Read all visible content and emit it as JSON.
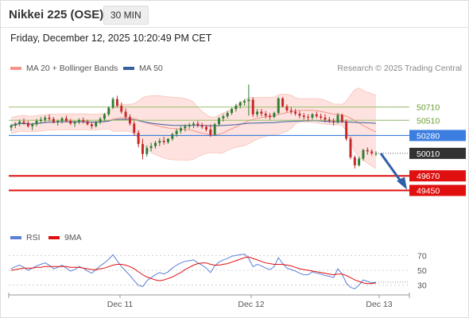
{
  "header": {
    "title": "Nikkei 225 (OSE)",
    "timeframe": "30 MIN",
    "datetime": "Friday, December 12, 2025 10:20:49 PM CET",
    "credit": "Research © 2025 Trading Central"
  },
  "legend": {
    "items": [
      {
        "label": "MA 20 + Bollinger Bands",
        "color": "#f4958a"
      },
      {
        "label": "MA 50",
        "color": "#3a5f9e"
      }
    ]
  },
  "rsi_legend": {
    "items": [
      {
        "label": "RSI",
        "color": "#5b7fd6"
      },
      {
        "label": "9MA",
        "color": "#e01010"
      }
    ]
  },
  "colors": {
    "up_candle": "#2e7d32",
    "down_candle": "#c62828",
    "bollinger_fill": "#fde2df",
    "ma20": "#f4958a",
    "ma50": "#3a5f9e",
    "resistance": "#9bc26b",
    "pivot": "#3b7de0",
    "support": "#e01010",
    "last_price_tag": "#333333",
    "forecast_arrow": "#2f5fa8"
  },
  "chart_data": [
    {
      "type": "candlestick",
      "panel": "price",
      "x_tick_labels": [
        "Dec 11",
        "Dec 12",
        "Dec 13"
      ],
      "ylim": [
        49300,
        51150
      ],
      "last_price": "50010",
      "levels": [
        {
          "label": "50710",
          "value": 50710,
          "kind": "resistance"
        },
        {
          "label": "50510",
          "value": 50510,
          "kind": "resistance"
        },
        {
          "label": "50280",
          "value": 50280,
          "kind": "pivot"
        },
        {
          "label": "49670",
          "value": 49670,
          "kind": "support"
        },
        {
          "label": "49450",
          "value": 49450,
          "kind": "support"
        }
      ],
      "forecast_arrow": {
        "from": 50010,
        "to": 49450,
        "direction": "down"
      },
      "candles": [
        [
          50400,
          50450,
          50350,
          50430
        ],
        [
          50430,
          50480,
          50390,
          50460
        ],
        [
          50460,
          50520,
          50420,
          50490
        ],
        [
          50490,
          50540,
          50440,
          50470
        ],
        [
          50470,
          50500,
          50400,
          50420
        ],
        [
          50420,
          50470,
          50360,
          50450
        ],
        [
          50450,
          50530,
          50420,
          50500
        ],
        [
          50500,
          50560,
          50460,
          50520
        ],
        [
          50520,
          50580,
          50480,
          50550
        ],
        [
          50550,
          50600,
          50500,
          50530
        ],
        [
          50530,
          50560,
          50460,
          50480
        ],
        [
          50480,
          50520,
          50430,
          50500
        ],
        [
          50500,
          50560,
          50460,
          50540
        ],
        [
          50540,
          50580,
          50480,
          50500
        ],
        [
          50500,
          50530,
          50440,
          50460
        ],
        [
          50460,
          50500,
          50410,
          50480
        ],
        [
          50480,
          50540,
          50450,
          50510
        ],
        [
          50510,
          50550,
          50460,
          50490
        ],
        [
          50490,
          50520,
          50430,
          50450
        ],
        [
          50450,
          50480,
          50380,
          50420
        ],
        [
          50420,
          50500,
          50400,
          50480
        ],
        [
          50480,
          50560,
          50450,
          50530
        ],
        [
          50530,
          50620,
          50500,
          50600
        ],
        [
          50600,
          50720,
          50570,
          50700
        ],
        [
          50700,
          50860,
          50680,
          50830
        ],
        [
          50830,
          50880,
          50700,
          50730
        ],
        [
          50730,
          50780,
          50610,
          50640
        ],
        [
          50640,
          50690,
          50520,
          50560
        ],
        [
          50560,
          50600,
          50430,
          50460
        ],
        [
          50460,
          50500,
          50280,
          50320
        ],
        [
          50320,
          50360,
          50100,
          50150
        ],
        [
          50150,
          50230,
          49920,
          50000
        ],
        [
          50000,
          50130,
          49960,
          50090
        ],
        [
          50090,
          50170,
          50040,
          50120
        ],
        [
          50120,
          50200,
          50080,
          50170
        ],
        [
          50170,
          50240,
          50120,
          50200
        ],
        [
          50200,
          50260,
          50140,
          50180
        ],
        [
          50180,
          50240,
          50150,
          50230
        ],
        [
          50230,
          50320,
          50200,
          50300
        ],
        [
          50300,
          50380,
          50260,
          50350
        ],
        [
          50350,
          50420,
          50310,
          50390
        ],
        [
          50390,
          50450,
          50340,
          50420
        ],
        [
          50420,
          50470,
          50380,
          50440
        ],
        [
          50440,
          50490,
          50390,
          50460
        ],
        [
          50460,
          50500,
          50400,
          50430
        ],
        [
          50430,
          50470,
          50380,
          50410
        ],
        [
          50410,
          50440,
          50340,
          50370
        ],
        [
          50370,
          50450,
          50260,
          50290
        ],
        [
          50290,
          50470,
          50280,
          50450
        ],
        [
          50450,
          50560,
          50420,
          50540
        ],
        [
          50540,
          50600,
          50490,
          50570
        ],
        [
          50570,
          50650,
          50540,
          50620
        ],
        [
          50620,
          50700,
          50590,
          50680
        ],
        [
          50680,
          50760,
          50640,
          50730
        ],
        [
          50730,
          50800,
          50690,
          50780
        ],
        [
          50780,
          50830,
          50730,
          50800
        ],
        [
          50800,
          51050,
          50580,
          50820
        ],
        [
          50820,
          50860,
          50560,
          50600
        ],
        [
          50600,
          50680,
          50560,
          50640
        ],
        [
          50640,
          50680,
          50570,
          50610
        ],
        [
          50610,
          50650,
          50540,
          50580
        ],
        [
          50580,
          50620,
          50520,
          50560
        ],
        [
          50560,
          50640,
          50540,
          50620
        ],
        [
          50620,
          50860,
          50600,
          50840
        ],
        [
          50840,
          50860,
          50700,
          50720
        ],
        [
          50720,
          50750,
          50630,
          50660
        ],
        [
          50660,
          50710,
          50600,
          50640
        ],
        [
          50640,
          50680,
          50580,
          50610
        ],
        [
          50610,
          50650,
          50540,
          50580
        ],
        [
          50580,
          50620,
          50520,
          50560
        ],
        [
          50560,
          50600,
          50500,
          50550
        ],
        [
          50550,
          50620,
          50520,
          50600
        ],
        [
          50600,
          50640,
          50540,
          50570
        ],
        [
          50570,
          50610,
          50520,
          50550
        ],
        [
          50550,
          50600,
          50480,
          50520
        ],
        [
          50520,
          50560,
          50470,
          50500
        ],
        [
          50500,
          50540,
          50430,
          50480
        ],
        [
          50480,
          50620,
          50460,
          50590
        ],
        [
          50590,
          50610,
          50470,
          50490
        ],
        [
          50490,
          50520,
          50200,
          50230
        ],
        [
          50230,
          50260,
          49920,
          49950
        ],
        [
          49950,
          49980,
          49780,
          49830
        ],
        [
          49830,
          49960,
          49810,
          49930
        ],
        [
          49930,
          50080,
          49900,
          50060
        ],
        [
          50060,
          50100,
          49990,
          50040
        ],
        [
          50040,
          50070,
          49980,
          50010
        ],
        [
          50010,
          50040,
          49970,
          50010
        ]
      ]
    },
    {
      "type": "line",
      "panel": "rsi",
      "y_tick_labels": [
        "70",
        "50",
        "30"
      ],
      "ylim": [
        20,
        80
      ],
      "x_tick_labels": [
        "Dec 11",
        "Dec 12",
        "Dec 13"
      ],
      "series": [
        {
          "name": "RSI",
          "values": [
            52,
            55,
            57,
            54,
            50,
            53,
            56,
            58,
            60,
            57,
            52,
            54,
            57,
            53,
            49,
            51,
            55,
            53,
            49,
            46,
            51,
            56,
            60,
            65,
            71,
            63,
            55,
            49,
            43,
            36,
            30,
            28,
            36,
            40,
            44,
            47,
            45,
            48,
            53,
            57,
            60,
            62,
            63,
            64,
            60,
            57,
            53,
            47,
            56,
            61,
            64,
            66,
            69,
            70,
            71,
            72,
            66,
            55,
            58,
            56,
            53,
            51,
            55,
            67,
            59,
            53,
            51,
            49,
            46,
            44,
            44,
            48,
            46,
            45,
            43,
            42,
            40,
            52,
            45,
            33,
            27,
            25,
            30,
            37,
            35,
            33,
            34
          ]
        },
        {
          "name": "9MA",
          "values": [
            50,
            51,
            52,
            53,
            53,
            53,
            54,
            54,
            55,
            55,
            55,
            55,
            55,
            55,
            54,
            54,
            54,
            53,
            52,
            51,
            51,
            52,
            53,
            55,
            57,
            58,
            58,
            57,
            55,
            52,
            48,
            44,
            41,
            39,
            37,
            36,
            37,
            39,
            41,
            44,
            47,
            51,
            54,
            57,
            59,
            60,
            60,
            58,
            57,
            57,
            58,
            59,
            61,
            63,
            65,
            67,
            68,
            66,
            64,
            62,
            60,
            59,
            58,
            58,
            58,
            57,
            56,
            54,
            52,
            51,
            50,
            49,
            48,
            47,
            46,
            45,
            44,
            45,
            45,
            43,
            40,
            37,
            35,
            33,
            32,
            32,
            33
          ]
        }
      ]
    }
  ]
}
